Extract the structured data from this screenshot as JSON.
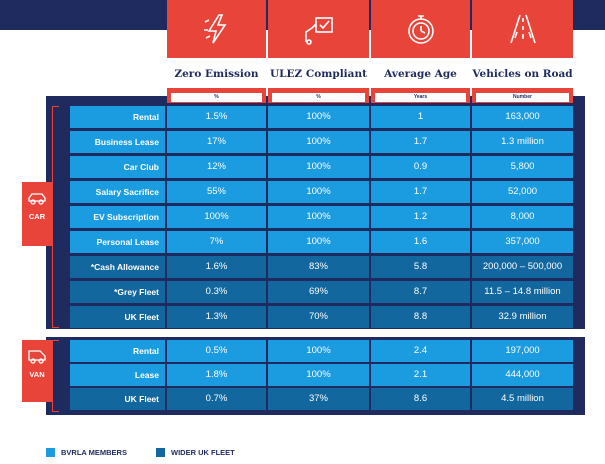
{
  "columns": [
    {
      "title": "Zero Emission",
      "unit": "%",
      "icon": "lightning-icon"
    },
    {
      "title": "ULEZ Compliant",
      "unit": "%",
      "icon": "compliance-icon"
    },
    {
      "title": "Average Age",
      "unit": "Years",
      "icon": "stopwatch-icon"
    },
    {
      "title": "Vehicles on Road",
      "unit": "Number",
      "icon": "road-icon"
    }
  ],
  "categories": {
    "car": "CAR",
    "van": "VAN"
  },
  "car_rows": [
    {
      "label": "Rental",
      "values": [
        "1.5%",
        "100%",
        "1",
        "163,000"
      ],
      "group": "bvrla"
    },
    {
      "label": "Business Lease",
      "values": [
        "17%",
        "100%",
        "1.7",
        "1.3 million"
      ],
      "group": "bvrla"
    },
    {
      "label": "Car Club",
      "values": [
        "12%",
        "100%",
        "0.9",
        "5,800"
      ],
      "group": "bvrla"
    },
    {
      "label": "Salary Sacrifice",
      "values": [
        "55%",
        "100%",
        "1.7",
        "52,000"
      ],
      "group": "bvrla"
    },
    {
      "label": "EV Subscription",
      "values": [
        "100%",
        "100%",
        "1.2",
        "8,000"
      ],
      "group": "bvrla"
    },
    {
      "label": "Personal Lease",
      "values": [
        "7%",
        "100%",
        "1.6",
        "357,000"
      ],
      "group": "bvrla"
    },
    {
      "label": "*Cash Allowance",
      "values": [
        "1.6%",
        "83%",
        "5.8",
        "200,000 – 500,000"
      ],
      "group": "wider"
    },
    {
      "label": "*Grey Fleet",
      "values": [
        "0.3%",
        "69%",
        "8.7",
        "11.5 – 14.8 million"
      ],
      "group": "wider"
    },
    {
      "label": "UK Fleet",
      "values": [
        "1.3%",
        "70%",
        "8.8",
        "32.9 million"
      ],
      "group": "wider"
    }
  ],
  "van_rows": [
    {
      "label": "Rental",
      "values": [
        "0.5%",
        "100%",
        "2.4",
        "197,000"
      ],
      "group": "bvrla"
    },
    {
      "label": "Lease",
      "values": [
        "1.8%",
        "100%",
        "2.1",
        "444,000"
      ],
      "group": "bvrla"
    },
    {
      "label": "UK Fleet",
      "values": [
        "0.7%",
        "37%",
        "8.6",
        "4.5 million"
      ],
      "group": "wider"
    }
  ],
  "legend": [
    {
      "label": "BVRLA MEMBERS",
      "color": "#1b9be0"
    },
    {
      "label": "WIDER UK FLEET",
      "color": "#12679f"
    }
  ],
  "colors": {
    "navy": "#1f2a5e",
    "accent": "#e8443a",
    "light": "#1b9be0",
    "dark": "#12679f"
  }
}
